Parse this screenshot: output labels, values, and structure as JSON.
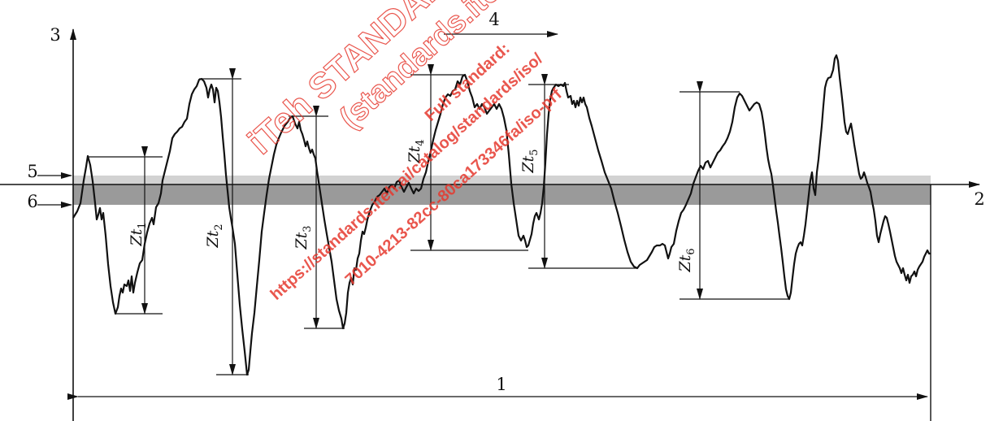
{
  "labels": {
    "one": "1",
    "two": "2",
    "three": "3",
    "four": "4",
    "five": "5",
    "six": "6"
  },
  "zt": [
    {
      "base": "Zt",
      "sub": "1"
    },
    {
      "base": "Zt",
      "sub": "2"
    },
    {
      "base": "Zt",
      "sub": "3"
    },
    {
      "base": "Zt",
      "sub": "4"
    },
    {
      "base": "Zt",
      "sub": "5"
    },
    {
      "base": "Zt",
      "sub": "6"
    }
  ],
  "watermark": {
    "line1": "iTeh STANDARD PREVIEW",
    "line2": "(standards.iteh.ai)",
    "line3": "Full standard:",
    "line4": "https://standards.iteh.ai/catalog/standards/iso/",
    "line5": "7010-4213-82cc-80ca173346fa/iso-prf"
  },
  "colors": {
    "band_light": "#d2d2d2",
    "band_dark": "#9a9a9a",
    "watermark": "#e6392f"
  }
}
